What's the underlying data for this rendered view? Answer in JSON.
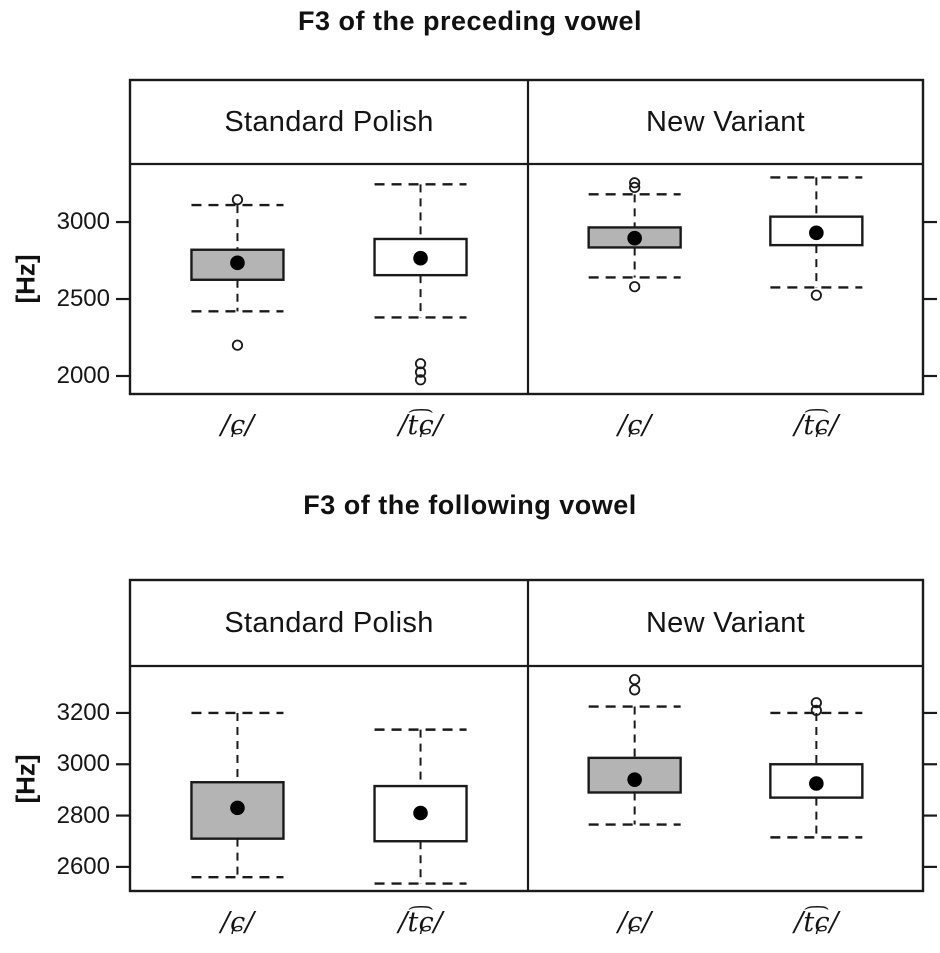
{
  "figure": {
    "background": "#ffffff"
  },
  "colors": {
    "line": "#1a1a1a",
    "box_gray": "#b4b4b4",
    "box_white": "#ffffff",
    "median_dot": "#000000"
  },
  "chart_data": [
    {
      "type": "boxplot",
      "title": "F3 of the preceding vowel",
      "ylabel": "[Hz]",
      "yticks": [
        2000,
        2500,
        3000
      ],
      "ylim": [
        1883,
        3377
      ],
      "grid": false,
      "panels": [
        {
          "label": "Standard Polish",
          "groups": [
            {
              "label": "/ɕ/",
              "fill": "gray",
              "whisker_low": 2420,
              "q1": 2625,
              "median": 2735,
              "q3": 2820,
              "whisker_high": 3110,
              "outliers": [
                3145,
                2200
              ]
            },
            {
              "label": "/t͡ɕ/",
              "fill": "white",
              "whisker_low": 2380,
              "q1": 2655,
              "median": 2765,
              "q3": 2890,
              "whisker_high": 3245,
              "outliers": [
                2080,
                2025,
                1975
              ]
            }
          ]
        },
        {
          "label": "New Variant",
          "groups": [
            {
              "label": "/ɕ/",
              "fill": "gray",
              "whisker_low": 2640,
              "q1": 2835,
              "median": 2895,
              "q3": 2965,
              "whisker_high": 3180,
              "outliers": [
                3255,
                3225,
                2580
              ]
            },
            {
              "label": "/t͡ɕ/",
              "fill": "white",
              "whisker_low": 2575,
              "q1": 2850,
              "median": 2930,
              "q3": 3035,
              "whisker_high": 3290,
              "outliers": [
                2525
              ]
            }
          ]
        }
      ]
    },
    {
      "type": "boxplot",
      "title": "F3 of the following vowel",
      "ylabel": "[Hz]",
      "yticks": [
        2600,
        2800,
        3000,
        3200
      ],
      "ylim": [
        2506,
        3383
      ],
      "grid": false,
      "panels": [
        {
          "label": "Standard Polish",
          "groups": [
            {
              "label": "/ɕ/",
              "fill": "gray",
              "whisker_low": 2560,
              "q1": 2710,
              "median": 2830,
              "q3": 2930,
              "whisker_high": 3200,
              "outliers": []
            },
            {
              "label": "/t͡ɕ/",
              "fill": "white",
              "whisker_low": 2535,
              "q1": 2700,
              "median": 2810,
              "q3": 2915,
              "whisker_high": 3135,
              "outliers": []
            }
          ]
        },
        {
          "label": "New Variant",
          "groups": [
            {
              "label": "/ɕ/",
              "fill": "gray",
              "whisker_low": 2765,
              "q1": 2890,
              "median": 2940,
              "q3": 3025,
              "whisker_high": 3225,
              "outliers": [
                3330,
                3290
              ]
            },
            {
              "label": "/t͡ɕ/",
              "fill": "white",
              "whisker_low": 2715,
              "q1": 2870,
              "median": 2925,
              "q3": 3000,
              "whisker_high": 3200,
              "outliers": [
                3240,
                3210
              ]
            }
          ]
        }
      ]
    }
  ]
}
